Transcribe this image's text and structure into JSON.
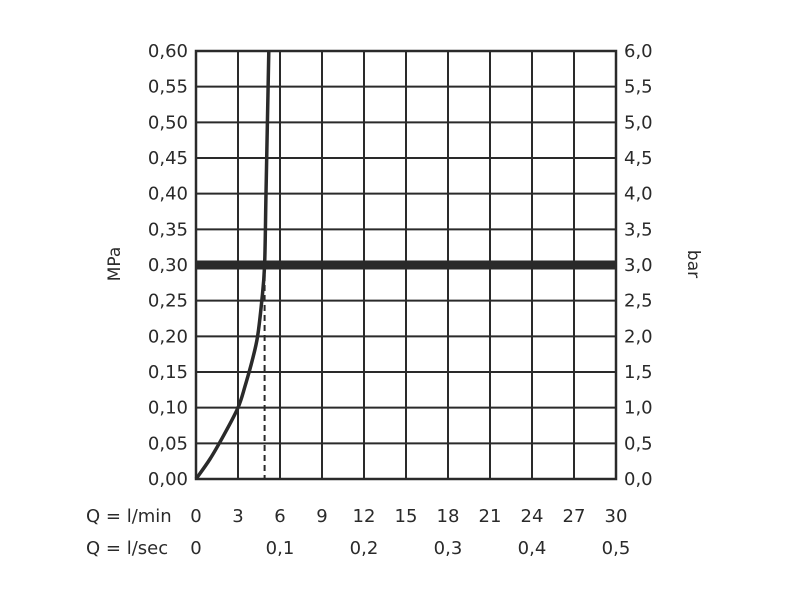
{
  "chart_data": {
    "type": "line",
    "left_axis": {
      "label": "MPa",
      "ticks": [
        "0,00",
        "0,05",
        "0,10",
        "0,15",
        "0,20",
        "0,25",
        "0,30",
        "0,35",
        "0,40",
        "0,45",
        "0,50",
        "0,55",
        "0,60"
      ],
      "range": [
        0,
        0.6
      ]
    },
    "right_axis": {
      "label": "bar",
      "ticks": [
        "0,0",
        "0,5",
        "1,0",
        "1,5",
        "2,0",
        "2,5",
        "3,0",
        "3,5",
        "4,0",
        "4,5",
        "5,0",
        "5,5",
        "6,0"
      ],
      "range": [
        0,
        6
      ]
    },
    "x_axis_lmin": {
      "label": "Q = l/min",
      "ticks": [
        "0",
        "3",
        "6",
        "9",
        "12",
        "15",
        "18",
        "21",
        "24",
        "27",
        "30"
      ],
      "range": [
        0,
        30
      ]
    },
    "x_axis_lsec": {
      "label": "Q = l/sec",
      "ticks": [
        "0",
        "0,1",
        "0,2",
        "0,3",
        "0,4",
        "0,5"
      ],
      "tick_values": [
        0,
        0.1,
        0.2,
        0.3,
        0.4,
        0.5
      ]
    },
    "grid": true,
    "series": [
      {
        "x": [
          0,
          1,
          2,
          3,
          3.5,
          4,
          4.4,
          4.7,
          4.9,
          5.0,
          5.1,
          5.2
        ],
        "y": [
          0,
          0.028,
          0.062,
          0.1,
          0.13,
          0.165,
          0.2,
          0.25,
          0.3,
          0.4,
          0.5,
          0.6
        ]
      }
    ],
    "reference_line": {
      "y": 0.3
    },
    "dashed_marker": {
      "x": 4.9,
      "y": 0.3
    }
  }
}
